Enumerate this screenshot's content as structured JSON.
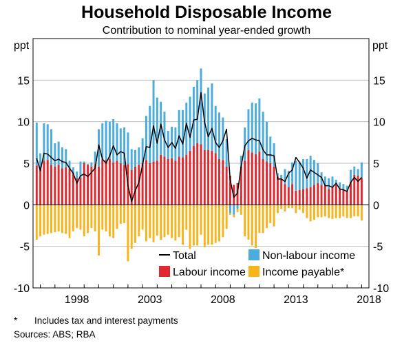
{
  "chart_data": {
    "type": "bar",
    "stacked": true,
    "title": "Household Disposable Income",
    "subtitle": "Contribution to nominal year-ended growth",
    "y_unit_left": "ppt",
    "y_unit_right": "ppt",
    "ylim": [
      -10,
      20
    ],
    "yticks": [
      -10,
      -5,
      0,
      5,
      10,
      15
    ],
    "xlim": [
      1995.5,
      2018.5
    ],
    "xticks": [
      1998,
      2003,
      2008,
      2013,
      2018
    ],
    "grid": true,
    "legend_position": "bottom-right inside plot",
    "x": [
      1995.75,
      1996.0,
      1996.25,
      1996.5,
      1996.75,
      1997.0,
      1997.25,
      1997.5,
      1997.75,
      1998.0,
      1998.25,
      1998.5,
      1998.75,
      1999.0,
      1999.25,
      1999.5,
      1999.75,
      2000.0,
      2000.25,
      2000.5,
      2000.75,
      2001.0,
      2001.25,
      2001.5,
      2001.75,
      2002.0,
      2002.25,
      2002.5,
      2002.75,
      2003.0,
      2003.25,
      2003.5,
      2003.75,
      2004.0,
      2004.25,
      2004.5,
      2004.75,
      2005.0,
      2005.25,
      2005.5,
      2005.75,
      2006.0,
      2006.25,
      2006.5,
      2006.75,
      2007.0,
      2007.25,
      2007.5,
      2007.75,
      2008.0,
      2008.25,
      2008.5,
      2008.75,
      2009.0,
      2009.25,
      2009.5,
      2009.75,
      2010.0,
      2010.25,
      2010.5,
      2010.75,
      2011.0,
      2011.25,
      2011.5,
      2011.75,
      2012.0,
      2012.25,
      2012.5,
      2012.75,
      2013.0,
      2013.25,
      2013.5,
      2013.75,
      2014.0,
      2014.25,
      2014.5,
      2014.75,
      2015.0,
      2015.25,
      2015.5,
      2015.75,
      2016.0,
      2016.25,
      2016.5,
      2016.75,
      2017.0,
      2017.25,
      2017.5,
      2017.75,
      2018.0
    ],
    "series": [
      {
        "name": "Labour income",
        "color": "#e0282e",
        "values": [
          4.7,
          4.6,
          5.3,
          5.4,
          4.8,
          4.6,
          4.8,
          4.4,
          4.5,
          4.3,
          3.8,
          3.2,
          3.2,
          5.0,
          4.8,
          4.6,
          4.9,
          4.6,
          5.4,
          5.4,
          5.5,
          5.1,
          5.3,
          5.0,
          4.8,
          4.9,
          4.2,
          4.6,
          4.8,
          5.0,
          5.4,
          5.0,
          5.2,
          5.3,
          6.0,
          5.8,
          5.5,
          5.6,
          5.3,
          5.8,
          5.7,
          6.0,
          6.5,
          7.1,
          7.4,
          7.3,
          6.6,
          6.6,
          6.5,
          6.2,
          5.5,
          5.4,
          4.6,
          3.5,
          2.4,
          2.6,
          4.6,
          5.3,
          6.6,
          6.3,
          6.1,
          6.4,
          5.5,
          5.2,
          5.0,
          4.6,
          3.4,
          3.1,
          2.5,
          2.1,
          2.5,
          1.7,
          1.8,
          1.9,
          2.0,
          2.1,
          2.4,
          2.6,
          2.4,
          2.3,
          1.9,
          2.2,
          2.4,
          2.0,
          1.8,
          1.6,
          2.7,
          3.6,
          3.5,
          3.2
        ]
      },
      {
        "name": "Non-labour income",
        "color": "#4bacde",
        "values": [
          5.2,
          1.6,
          4.5,
          4.3,
          4.3,
          2.8,
          2.8,
          2.5,
          2.2,
          1.0,
          0.7,
          0.8,
          2.0,
          0.2,
          0.1,
          0.5,
          1.5,
          4.5,
          4.4,
          4.7,
          4.5,
          5.2,
          4.5,
          4.2,
          4.5,
          3.8,
          2.5,
          2.0,
          2.1,
          3.0,
          5.3,
          6.9,
          9.8,
          7.6,
          6.4,
          5.4,
          3.4,
          3.8,
          4.0,
          5.6,
          5.7,
          6.3,
          6.5,
          7.1,
          7.6,
          9.1,
          6.8,
          7.5,
          8.1,
          5.7,
          5.6,
          5.1,
          3.3,
          -1.0,
          -1.2,
          -0.5,
          1.3,
          4.0,
          4.9,
          6.0,
          6.1,
          6.4,
          5.7,
          4.8,
          3.2,
          2.8,
          0.4,
          0.5,
          1.8,
          2.0,
          2.6,
          3.6,
          3.4,
          3.6,
          3.5,
          3.8,
          3.0,
          2.4,
          1.5,
          1.1,
          1.3,
          1.2,
          0.6,
          0.7,
          0.7,
          0.7,
          1.5,
          1.0,
          0.8,
          1.9
        ]
      },
      {
        "name": "Income payable*",
        "color": "#f8b41a",
        "values": [
          -4.2,
          -3.8,
          -3.6,
          -3.5,
          -3.4,
          -3.3,
          -3.2,
          -3.4,
          -3.5,
          -4.0,
          -3.2,
          -2.8,
          -3.0,
          -3.8,
          -3.4,
          -2.8,
          -3.2,
          -6.1,
          -3.0,
          -3.2,
          -3.8,
          -4.0,
          -2.9,
          -2.3,
          -2.2,
          -6.8,
          -5.3,
          -4.6,
          -3.8,
          -3.0,
          -4.4,
          -4.0,
          -4.5,
          -3.7,
          -4.2,
          -3.9,
          -3.6,
          -4.0,
          -4.3,
          -3.9,
          -4.8,
          -3.0,
          -5.3,
          -4.9,
          -4.9,
          -3.6,
          -5.1,
          -4.8,
          -4.8,
          -4.6,
          -4.4,
          -3.9,
          -2.9,
          -0.2,
          -0.3,
          -0.4,
          -1.2,
          -3.8,
          -4.2,
          -4.9,
          -5.2,
          -3.4,
          -3.4,
          -2.8,
          -2.2,
          -2.6,
          -1.0,
          -0.5,
          -0.8,
          -0.4,
          -0.4,
          -1.0,
          -0.6,
          -1.0,
          -1.6,
          -2.0,
          -1.8,
          -1.5,
          -1.5,
          -1.4,
          -1.6,
          -1.7,
          -1.6,
          -1.6,
          -1.4,
          -1.6,
          -1.6,
          -1.4,
          -1.4,
          -1.9
        ]
      }
    ],
    "total": {
      "name": "Total",
      "color": "#000000",
      "values": [
        5.6,
        4.1,
        6.2,
        6.1,
        5.7,
        5.3,
        5.5,
        5.2,
        5.1,
        4.4,
        3.8,
        2.6,
        3.5,
        3.7,
        3.4,
        3.9,
        4.4,
        7.2,
        5.5,
        5.0,
        5.9,
        7.1,
        6.0,
        6.4,
        6.2,
        2.3,
        0.4,
        1.7,
        2.7,
        4.8,
        7.0,
        6.9,
        9.5,
        7.4,
        9.7,
        7.8,
        6.9,
        7.5,
        6.8,
        8.3,
        7.3,
        9.8,
        8.1,
        10.2,
        10.3,
        13.5,
        9.9,
        8.2,
        9.2,
        7.5,
        6.9,
        7.7,
        9.1,
        3.0,
        0.9,
        1.4,
        4.6,
        7.1,
        7.7,
        8.0,
        7.8,
        7.7,
        6.6,
        6.0,
        6.0,
        5.9,
        3.1,
        3.1,
        2.8,
        3.8,
        4.2,
        5.7,
        5.1,
        4.4,
        3.2,
        4.2,
        3.9,
        3.6,
        3.3,
        2.3,
        2.3,
        2.1,
        2.6,
        1.9,
        1.8,
        1.6,
        2.7,
        3.3,
        2.8,
        3.3
      ]
    },
    "legend": {
      "total": "Total",
      "non_labour": "Non-labour income",
      "labour": "Labour income",
      "payable": "Income payable*"
    },
    "footnotes": {
      "mark": "*",
      "note": "Includes tax and interest payments",
      "sources": "Sources: ABS; RBA"
    }
  }
}
